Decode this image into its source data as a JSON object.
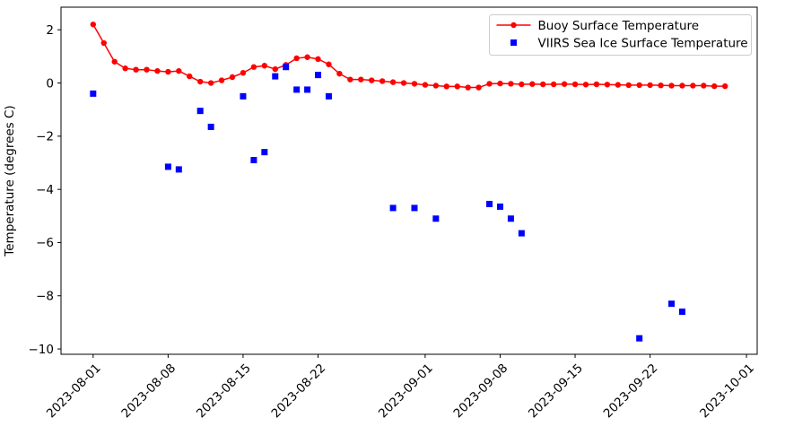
{
  "chart_data": {
    "type": "line",
    "title": "",
    "xlabel": "",
    "ylabel": "Temperature (degrees C)",
    "xlim": [
      "2023-07-29",
      "2023-10-02"
    ],
    "ylim": [
      -10.2,
      2.85
    ],
    "grid": false,
    "background_color": "#ffffff",
    "axis_color": "#000000",
    "legend": {
      "position": "upper right",
      "border_color": "#cccccc",
      "entries": [
        "Buoy Surface Temperature",
        "VIIRS Sea Ice Surface Temperature"
      ]
    },
    "x_ticks": [
      {
        "date": "2023-08-01",
        "label": "2023-08-01"
      },
      {
        "date": "2023-08-08",
        "label": "2023-08-08"
      },
      {
        "date": "2023-08-15",
        "label": "2023-08-15"
      },
      {
        "date": "2023-08-22",
        "label": "2023-08-22"
      },
      {
        "date": "2023-09-01",
        "label": "2023-09-01"
      },
      {
        "date": "2023-09-08",
        "label": "2023-09-08"
      },
      {
        "date": "2023-09-15",
        "label": "2023-09-15"
      },
      {
        "date": "2023-09-22",
        "label": "2023-09-22"
      },
      {
        "date": "2023-10-01",
        "label": "2023-10-01"
      }
    ],
    "y_ticks": [
      {
        "value": 2,
        "label": "2"
      },
      {
        "value": 0,
        "label": "0"
      },
      {
        "value": -2,
        "label": "−2"
      },
      {
        "value": -4,
        "label": "−4"
      },
      {
        "value": -6,
        "label": "−6"
      },
      {
        "value": -8,
        "label": "−8"
      },
      {
        "value": -10,
        "label": "−10"
      }
    ],
    "series": [
      {
        "name": "Buoy Surface Temperature",
        "type": "line-with-markers",
        "marker": "circle",
        "color": "#ff0000",
        "dates": [
          "2023-08-01",
          "2023-08-02",
          "2023-08-03",
          "2023-08-04",
          "2023-08-05",
          "2023-08-06",
          "2023-08-07",
          "2023-08-08",
          "2023-08-09",
          "2023-08-10",
          "2023-08-11",
          "2023-08-12",
          "2023-08-13",
          "2023-08-14",
          "2023-08-15",
          "2023-08-16",
          "2023-08-17",
          "2023-08-18",
          "2023-08-19",
          "2023-08-20",
          "2023-08-21",
          "2023-08-22",
          "2023-08-23",
          "2023-08-24",
          "2023-08-25",
          "2023-08-26",
          "2023-08-27",
          "2023-08-28",
          "2023-08-29",
          "2023-08-30",
          "2023-08-31",
          "2023-09-01",
          "2023-09-02",
          "2023-09-03",
          "2023-09-04",
          "2023-09-05",
          "2023-09-06",
          "2023-09-07",
          "2023-09-08",
          "2023-09-09",
          "2023-09-10",
          "2023-09-11",
          "2023-09-12",
          "2023-09-13",
          "2023-09-14",
          "2023-09-15",
          "2023-09-16",
          "2023-09-17",
          "2023-09-18",
          "2023-09-19",
          "2023-09-20",
          "2023-09-21",
          "2023-09-22",
          "2023-09-23",
          "2023-09-24",
          "2023-09-25",
          "2023-09-26",
          "2023-09-27",
          "2023-09-28",
          "2023-09-29"
        ],
        "values": [
          2.2,
          1.5,
          0.8,
          0.55,
          0.5,
          0.5,
          0.45,
          0.42,
          0.45,
          0.25,
          0.05,
          0.0,
          0.1,
          0.22,
          0.38,
          0.6,
          0.65,
          0.52,
          0.68,
          0.93,
          0.97,
          0.9,
          0.7,
          0.35,
          0.13,
          0.13,
          0.1,
          0.07,
          0.03,
          0.0,
          -0.03,
          -0.07,
          -0.1,
          -0.13,
          -0.13,
          -0.17,
          -0.17,
          -0.03,
          -0.02,
          -0.03,
          -0.05,
          -0.04,
          -0.05,
          -0.05,
          -0.04,
          -0.05,
          -0.06,
          -0.05,
          -0.06,
          -0.07,
          -0.08,
          -0.08,
          -0.08,
          -0.09,
          -0.1,
          -0.1,
          -0.1,
          -0.1,
          -0.12,
          -0.12
        ]
      },
      {
        "name": "VIIRS Sea Ice Surface Temperature",
        "type": "scatter",
        "marker": "square",
        "color": "#0000ff",
        "dates": [
          "2023-08-01",
          "2023-08-08",
          "2023-08-09",
          "2023-08-11",
          "2023-08-12",
          "2023-08-15",
          "2023-08-16",
          "2023-08-17",
          "2023-08-18",
          "2023-08-19",
          "2023-08-20",
          "2023-08-21",
          "2023-08-22",
          "2023-08-23",
          "2023-08-29",
          "2023-08-31",
          "2023-09-02",
          "2023-09-07",
          "2023-09-08",
          "2023-09-09",
          "2023-09-10",
          "2023-09-21",
          "2023-09-24",
          "2023-09-25"
        ],
        "values": [
          -0.4,
          -3.15,
          -3.25,
          -1.05,
          -1.65,
          -0.5,
          -2.9,
          -2.6,
          0.25,
          0.6,
          -0.25,
          -0.25,
          0.3,
          -0.5,
          -4.7,
          -4.7,
          -5.1,
          -4.55,
          -4.65,
          -5.1,
          -5.65,
          -9.6,
          -8.3,
          -8.6
        ]
      }
    ]
  }
}
